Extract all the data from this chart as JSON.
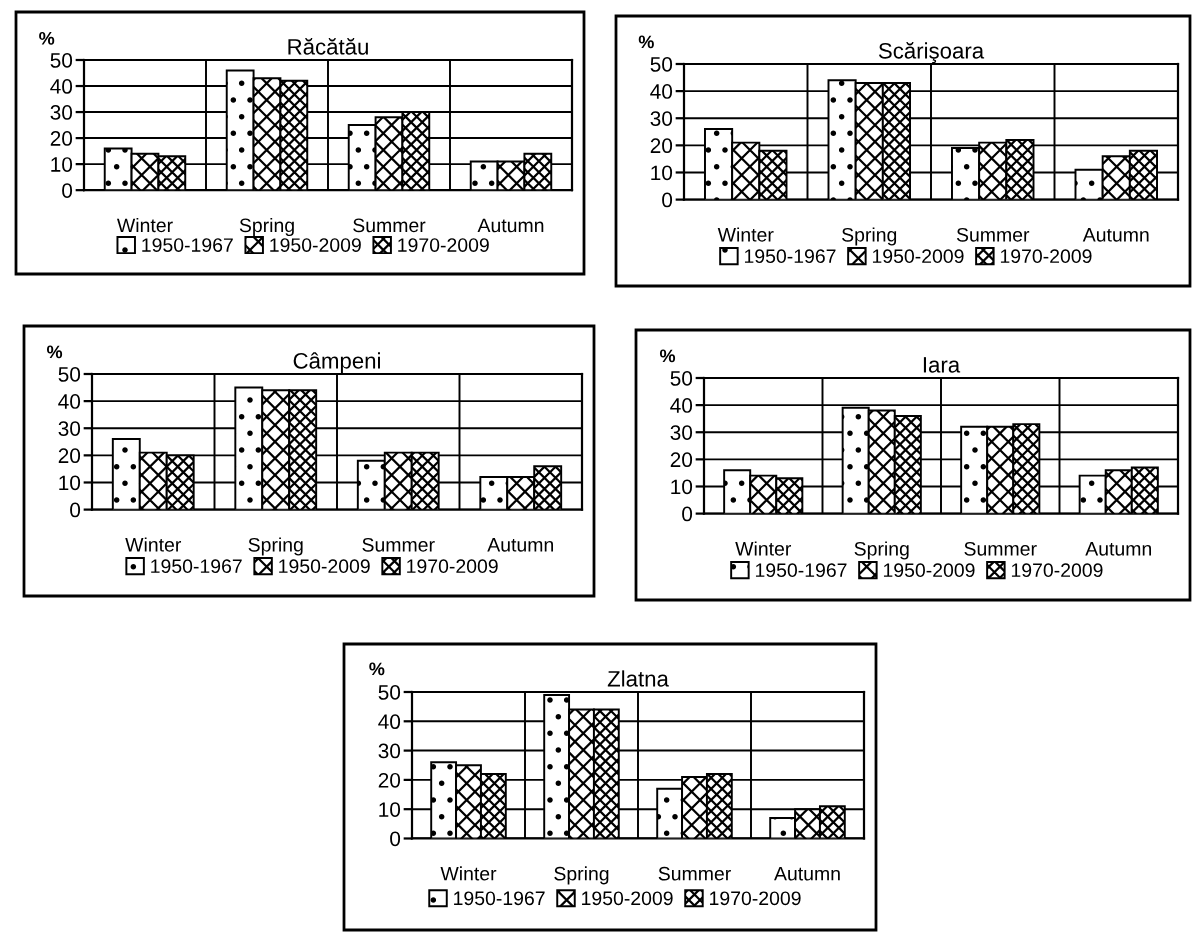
{
  "chart_data": [
    {
      "type": "bar",
      "title": "Răcătău",
      "ylabel": "%",
      "categories": [
        "Winter",
        "Spring",
        "Summer",
        "Autumn"
      ],
      "series": [
        {
          "name": "1950-1967",
          "color": "#000000",
          "values": [
            16,
            46,
            25,
            11
          ]
        },
        {
          "name": "1950-2009",
          "color": "#000000",
          "values": [
            14,
            43,
            28,
            11
          ]
        },
        {
          "name": "1970-2009",
          "color": "#000000",
          "values": [
            13,
            42,
            30,
            14
          ]
        }
      ],
      "ylim": [
        0,
        50
      ],
      "yticks": [
        0,
        10,
        20,
        30,
        40,
        50
      ],
      "grid": true,
      "legend": "bottom"
    },
    {
      "type": "bar",
      "title": "Scărişoara",
      "ylabel": "%",
      "categories": [
        "Winter",
        "Spring",
        "Summer",
        "Autumn"
      ],
      "series": [
        {
          "name": "1950-1967",
          "color": "#000000",
          "values": [
            26,
            44,
            19,
            11
          ]
        },
        {
          "name": "1950-2009",
          "color": "#000000",
          "values": [
            21,
            43,
            21,
            16
          ]
        },
        {
          "name": "1970-2009",
          "color": "#000000",
          "values": [
            18,
            43,
            22,
            18
          ]
        }
      ],
      "ylim": [
        0,
        50
      ],
      "yticks": [
        0,
        10,
        20,
        30,
        40,
        50
      ],
      "grid": true,
      "legend": "bottom"
    },
    {
      "type": "bar",
      "title": "Câmpeni",
      "ylabel": "%",
      "categories": [
        "Winter",
        "Spring",
        "Summer",
        "Autumn"
      ],
      "series": [
        {
          "name": "1950-1967",
          "color": "#000000",
          "values": [
            26,
            45,
            18,
            12
          ]
        },
        {
          "name": "1950-2009",
          "color": "#000000",
          "values": [
            21,
            44,
            21,
            12
          ]
        },
        {
          "name": "1970-2009",
          "color": "#000000",
          "values": [
            20,
            44,
            21,
            16
          ]
        }
      ],
      "ylim": [
        0,
        50
      ],
      "yticks": [
        0,
        10,
        20,
        30,
        40,
        50
      ],
      "grid": true,
      "legend": "bottom"
    },
    {
      "type": "bar",
      "title": "Iara",
      "ylabel": "%",
      "categories": [
        "Winter",
        "Spring",
        "Summer",
        "Autumn"
      ],
      "series": [
        {
          "name": "1950-1967",
          "color": "#000000",
          "values": [
            16,
            39,
            32,
            14
          ]
        },
        {
          "name": "1950-2009",
          "color": "#000000",
          "values": [
            14,
            38,
            32,
            16
          ]
        },
        {
          "name": "1970-2009",
          "color": "#000000",
          "values": [
            13,
            36,
            33,
            17
          ]
        }
      ],
      "ylim": [
        0,
        50
      ],
      "yticks": [
        0,
        10,
        20,
        30,
        40,
        50
      ],
      "grid": true,
      "legend": "bottom"
    },
    {
      "type": "bar",
      "title": "Zlatna",
      "ylabel": "%",
      "categories": [
        "Winter",
        "Spring",
        "Summer",
        "Autumn"
      ],
      "series": [
        {
          "name": "1950-1967",
          "color": "#000000",
          "values": [
            26,
            49,
            17,
            7
          ]
        },
        {
          "name": "1950-2009",
          "color": "#000000",
          "values": [
            25,
            44,
            21,
            10
          ]
        },
        {
          "name": "1970-2009",
          "color": "#000000",
          "values": [
            22,
            44,
            22,
            11
          ]
        }
      ],
      "ylim": [
        0,
        50
      ],
      "yticks": [
        0,
        10,
        20,
        30,
        40,
        50
      ],
      "grid": true,
      "legend": "bottom"
    }
  ]
}
